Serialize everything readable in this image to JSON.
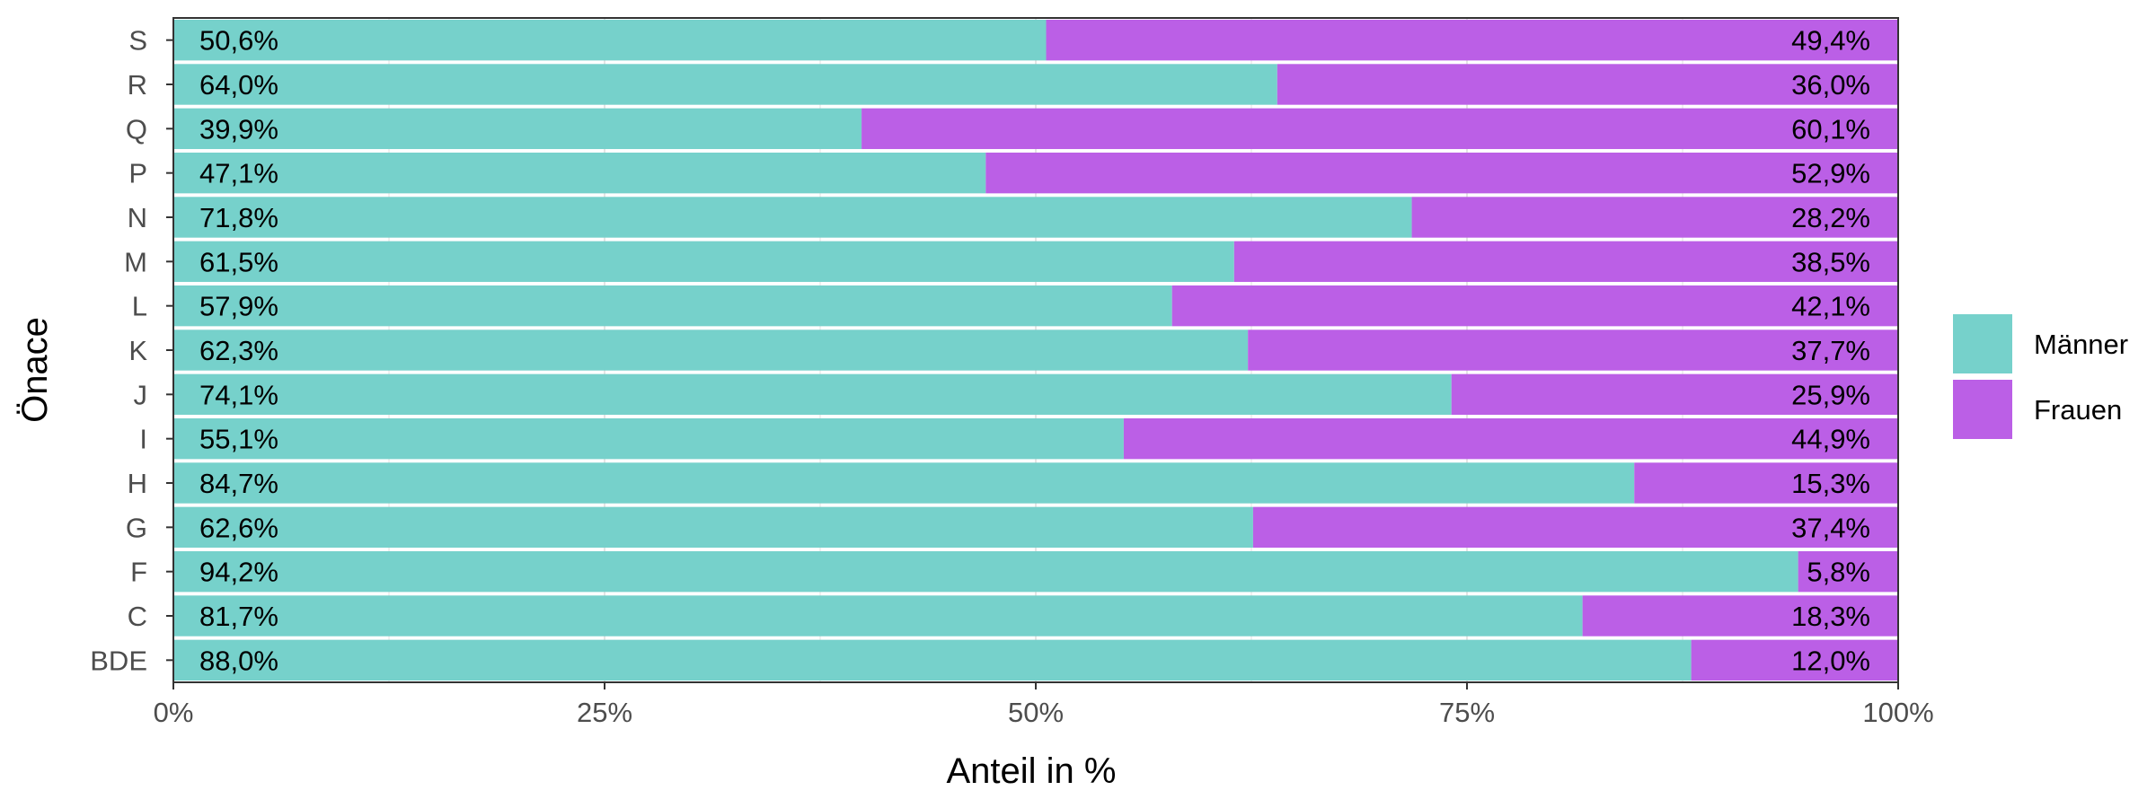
{
  "chart_data": {
    "type": "bar",
    "orientation": "horizontal",
    "stacked": true,
    "categories": [
      "S",
      "R",
      "Q",
      "P",
      "N",
      "M",
      "L",
      "K",
      "J",
      "I",
      "H",
      "G",
      "F",
      "C",
      "BDE"
    ],
    "series": [
      {
        "name": "Männer",
        "color": "#76D1CB",
        "values": [
          50.6,
          64.0,
          39.9,
          47.1,
          71.8,
          61.5,
          57.9,
          62.3,
          74.1,
          55.1,
          84.7,
          62.6,
          94.2,
          81.7,
          88.0
        ],
        "labels": [
          "50,6%",
          "64,0%",
          "39,9%",
          "47,1%",
          "71,8%",
          "61,5%",
          "57,9%",
          "62,3%",
          "74,1%",
          "55,1%",
          "84,7%",
          "62,6%",
          "94,2%",
          "81,7%",
          "88,0%"
        ]
      },
      {
        "name": "Frauen",
        "color": "#BB5FE6",
        "values": [
          49.4,
          36.0,
          60.1,
          52.9,
          28.2,
          38.5,
          42.1,
          37.7,
          25.9,
          44.9,
          15.3,
          37.4,
          5.8,
          18.3,
          12.0
        ],
        "labels": [
          "49,4%",
          "36,0%",
          "60,1%",
          "52,9%",
          "28,2%",
          "38,5%",
          "42,1%",
          "37,7%",
          "25,9%",
          "44,9%",
          "15,3%",
          "37,4%",
          "5,8%",
          "18,3%",
          "12,0%"
        ]
      }
    ],
    "xlabel": "Anteil in %",
    "ylabel": "Önace",
    "xlim": [
      0,
      100
    ],
    "x_ticks": [
      0,
      25,
      50,
      75,
      100
    ],
    "x_tick_labels": [
      "0%",
      "25%",
      "50%",
      "75%",
      "100%"
    ],
    "legend_position": "right",
    "grid": true
  }
}
